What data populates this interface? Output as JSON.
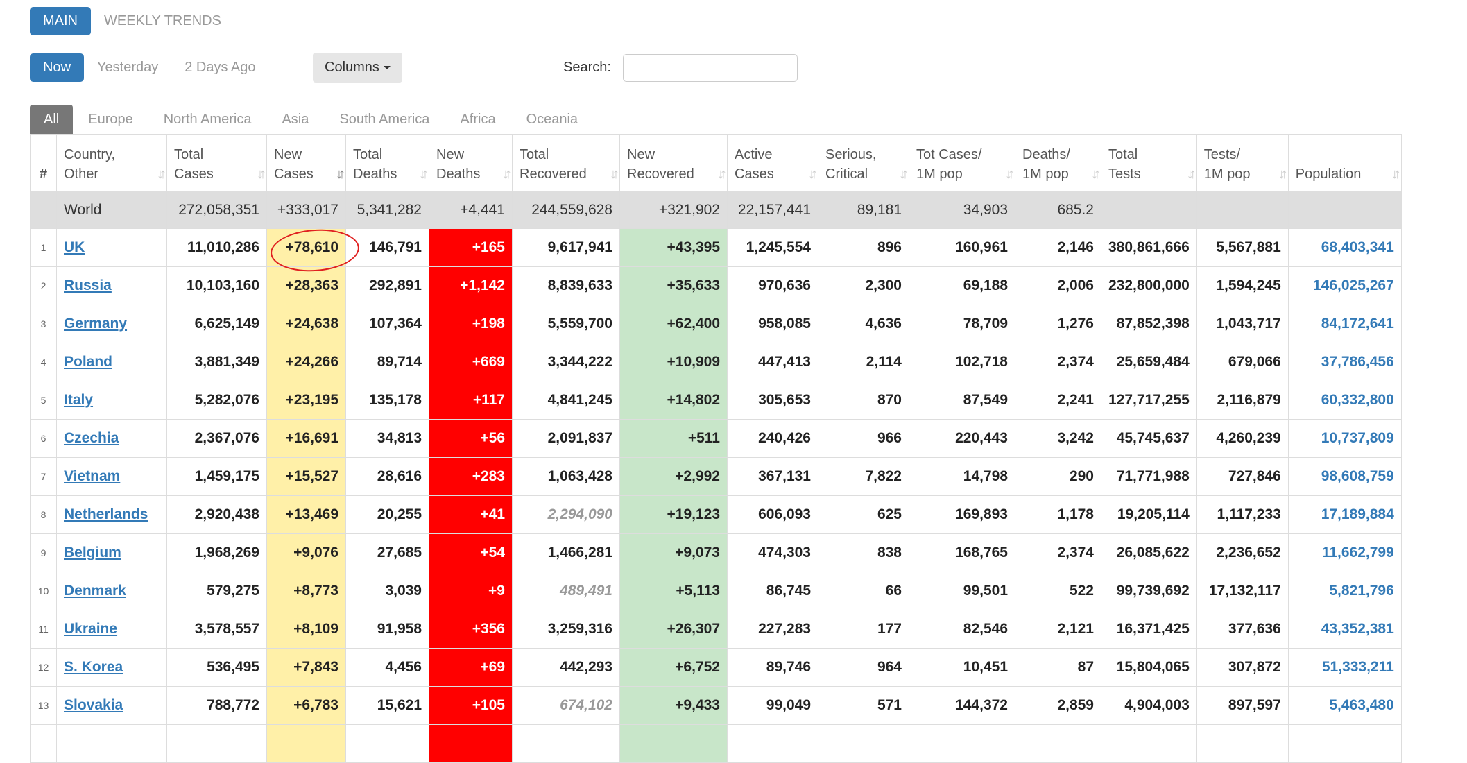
{
  "top_tabs": [
    "MAIN",
    "WEEKLY TRENDS"
  ],
  "day_tabs": [
    "Now",
    "Yesterday",
    "2 Days Ago"
  ],
  "columns_button": "Columns",
  "search": {
    "label": "Search:",
    "value": ""
  },
  "region_tabs": [
    "All",
    "Europe",
    "North America",
    "Asia",
    "South America",
    "Africa",
    "Oceania"
  ],
  "headers": [
    {
      "l1": "#",
      "l2": ""
    },
    {
      "l1": "Country,",
      "l2": "Other"
    },
    {
      "l1": "Total",
      "l2": "Cases"
    },
    {
      "l1": "New",
      "l2": "Cases"
    },
    {
      "l1": "Total",
      "l2": "Deaths"
    },
    {
      "l1": "New",
      "l2": "Deaths"
    },
    {
      "l1": "Total",
      "l2": "Recovered"
    },
    {
      "l1": "New",
      "l2": "Recovered"
    },
    {
      "l1": "Active",
      "l2": "Cases"
    },
    {
      "l1": "Serious,",
      "l2": "Critical"
    },
    {
      "l1": "Tot Cases/",
      "l2": "1M pop"
    },
    {
      "l1": "Deaths/",
      "l2": "1M pop"
    },
    {
      "l1": "Total",
      "l2": "Tests"
    },
    {
      "l1": "Tests/",
      "l2": "1M pop"
    },
    {
      "l1": "",
      "l2": "Population"
    }
  ],
  "world": [
    "",
    "World",
    "272,058,351",
    "+333,017",
    "5,341,282",
    "+4,441",
    "244,559,628",
    "+321,902",
    "22,157,441",
    "89,181",
    "34,903",
    "685.2",
    "",
    "",
    ""
  ],
  "rows": [
    [
      "1",
      "UK",
      "11,010,286",
      "+78,610",
      "146,791",
      "+165",
      "9,617,941",
      "+43,395",
      "1,245,554",
      "896",
      "160,961",
      "2,146",
      "380,861,666",
      "5,567,881",
      "68,403,341"
    ],
    [
      "2",
      "Russia",
      "10,103,160",
      "+28,363",
      "292,891",
      "+1,142",
      "8,839,633",
      "+35,633",
      "970,636",
      "2,300",
      "69,188",
      "2,006",
      "232,800,000",
      "1,594,245",
      "146,025,267"
    ],
    [
      "3",
      "Germany",
      "6,625,149",
      "+24,638",
      "107,364",
      "+198",
      "5,559,700",
      "+62,400",
      "958,085",
      "4,636",
      "78,709",
      "1,276",
      "87,852,398",
      "1,043,717",
      "84,172,641"
    ],
    [
      "4",
      "Poland",
      "3,881,349",
      "+24,266",
      "89,714",
      "+669",
      "3,344,222",
      "+10,909",
      "447,413",
      "2,114",
      "102,718",
      "2,374",
      "25,659,484",
      "679,066",
      "37,786,456"
    ],
    [
      "5",
      "Italy",
      "5,282,076",
      "+23,195",
      "135,178",
      "+117",
      "4,841,245",
      "+14,802",
      "305,653",
      "870",
      "87,549",
      "2,241",
      "127,717,255",
      "2,116,879",
      "60,332,800"
    ],
    [
      "6",
      "Czechia",
      "2,367,076",
      "+16,691",
      "34,813",
      "+56",
      "2,091,837",
      "+511",
      "240,426",
      "966",
      "220,443",
      "3,242",
      "45,745,637",
      "4,260,239",
      "10,737,809"
    ],
    [
      "7",
      "Vietnam",
      "1,459,175",
      "+15,527",
      "28,616",
      "+283",
      "1,063,428",
      "+2,992",
      "367,131",
      "7,822",
      "14,798",
      "290",
      "71,771,988",
      "727,846",
      "98,608,759"
    ],
    [
      "8",
      "Netherlands",
      "2,920,438",
      "+13,469",
      "20,255",
      "+41",
      "2,294,090",
      "+19,123",
      "606,093",
      "625",
      "169,893",
      "1,178",
      "19,205,114",
      "1,117,233",
      "17,189,884"
    ],
    [
      "9",
      "Belgium",
      "1,968,269",
      "+9,076",
      "27,685",
      "+54",
      "1,466,281",
      "+9,073",
      "474,303",
      "838",
      "168,765",
      "2,374",
      "26,085,622",
      "2,236,652",
      "11,662,799"
    ],
    [
      "10",
      "Denmark",
      "579,275",
      "+8,773",
      "3,039",
      "+9",
      "489,491",
      "+5,113",
      "86,745",
      "66",
      "99,501",
      "522",
      "99,739,692",
      "17,132,117",
      "5,821,796"
    ],
    [
      "11",
      "Ukraine",
      "3,578,557",
      "+8,109",
      "91,958",
      "+356",
      "3,259,316",
      "+26,307",
      "227,283",
      "177",
      "82,546",
      "2,121",
      "16,371,425",
      "377,636",
      "43,352,381"
    ],
    [
      "12",
      "S. Korea",
      "536,495",
      "+7,843",
      "4,456",
      "+69",
      "442,293",
      "+6,752",
      "89,746",
      "964",
      "10,451",
      "87",
      "15,804,065",
      "307,872",
      "51,333,211"
    ],
    [
      "13",
      "Slovakia",
      "788,772",
      "+6,783",
      "15,621",
      "+105",
      "674,102",
      "+9,433",
      "99,049",
      "571",
      "144,372",
      "2,859",
      "4,904,003",
      "897,597",
      "5,463,480"
    ],
    [
      "",
      "",
      "",
      "",
      "",
      "",
      "",
      "",
      "",
      "",
      "",
      "",
      "",
      "",
      ""
    ]
  ],
  "italic_recovered_rows": [
    7,
    9,
    12
  ],
  "colors": {
    "primary": "#337ab7",
    "new_cases_bg": "#fff0a8",
    "new_deaths_bg": "#ff0000",
    "new_recovered_bg": "#c8e6c9",
    "world_bg": "#dedede",
    "annotation": "#e02020"
  }
}
